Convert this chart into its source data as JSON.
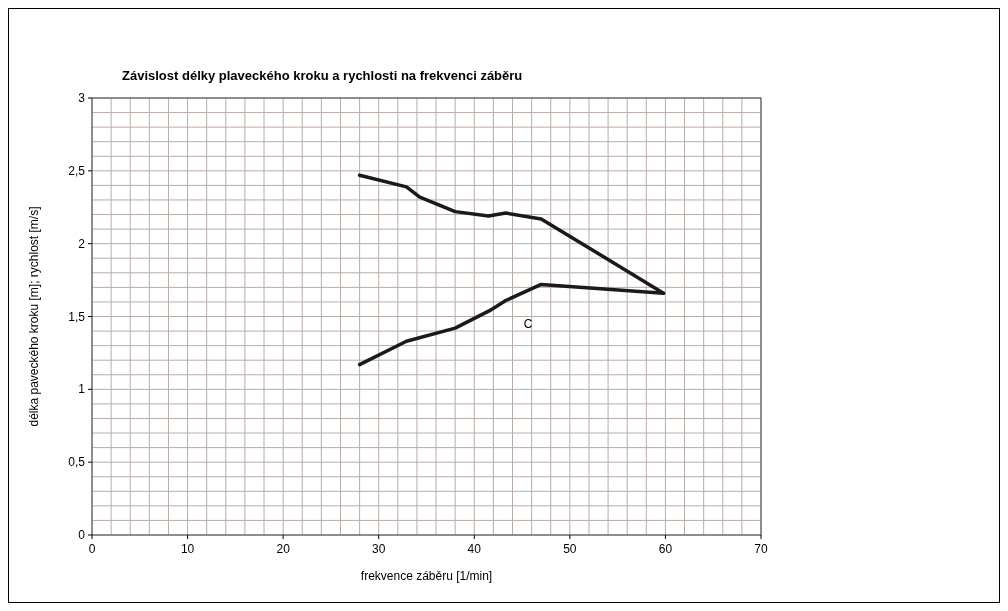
{
  "chart_data": {
    "type": "line",
    "title": "Závislost délky plaveckého kroku a rychlosti na frekvenci záběru",
    "xlabel": "frekvence záběru [1/min]",
    "ylabel": "délka paveckého kroku [m]; rychlost [m/s]",
    "series": [
      {
        "color": "#1a1a1a",
        "x": [
          28,
          32.9,
          34.3,
          38,
          41.5,
          43.3,
          47,
          59.8
        ],
        "values": [
          2.47,
          2.39,
          2.32,
          2.22,
          2.19,
          2.21,
          2.17,
          1.66
        ]
      },
      {
        "color": "#1a1a1a",
        "x": [
          28,
          32.9,
          38,
          41.6,
          43.3,
          47,
          59.8
        ],
        "values": [
          1.17,
          1.33,
          1.42,
          1.54,
          1.61,
          1.72,
          1.66
        ]
      }
    ],
    "xlim": [
      0,
      70
    ],
    "xticks": [
      0,
      10,
      20,
      30,
      40,
      50,
      60,
      70
    ],
    "ylim": [
      0,
      3
    ],
    "yticks": [
      0,
      {
        "value": 0.5,
        "label": "0,5"
      },
      1,
      {
        "value": 1.5,
        "label": "1,5"
      },
      2,
      {
        "value": 2.5,
        "label": "2,5"
      },
      3
    ],
    "grid": true,
    "line_style": "solid",
    "marker": "none",
    "annotations": [
      "C"
    ]
  }
}
